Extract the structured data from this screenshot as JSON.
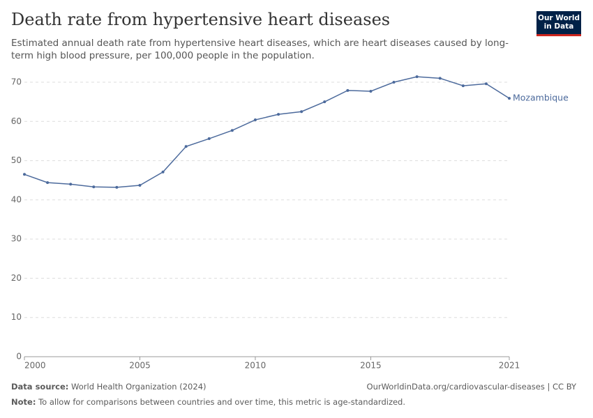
{
  "header": {
    "title": "Death rate from hypertensive heart diseases",
    "subtitle": "Estimated annual death rate from hypertensive heart diseases, which are heart diseases caused by long-term high blood pressure, per 100,000 people in the population.",
    "logo": [
      "Our World",
      "in Data"
    ]
  },
  "chart_data": {
    "type": "line",
    "x": [
      2000,
      2001,
      2002,
      2003,
      2004,
      2005,
      2006,
      2007,
      2008,
      2009,
      2010,
      2011,
      2012,
      2013,
      2014,
      2015,
      2016,
      2017,
      2018,
      2019,
      2020,
      2021
    ],
    "series": [
      {
        "name": "Mozambique",
        "color": "#4c6a9c",
        "values": [
          46.5,
          44.4,
          44.0,
          43.3,
          43.2,
          43.7,
          47.1,
          53.6,
          55.6,
          57.7,
          60.4,
          61.8,
          62.5,
          65.0,
          67.9,
          67.7,
          70.0,
          71.4,
          71.0,
          69.1,
          69.6,
          65.9
        ]
      }
    ],
    "xlim": [
      2000,
      2021
    ],
    "xticks": [
      2000,
      2005,
      2010,
      2015,
      2021
    ],
    "ylim": [
      0,
      70
    ],
    "yticks": [
      0,
      10,
      20,
      30,
      40,
      50,
      60,
      70
    ],
    "grid": true
  },
  "footer": {
    "source_label": "Data source:",
    "source": "World Health Organization (2024)",
    "url": "OurWorldinData.org/cardiovascular-diseases | CC BY",
    "note_label": "Note:",
    "note": "To allow for comparisons between countries and over time, this metric is age-standardized."
  }
}
